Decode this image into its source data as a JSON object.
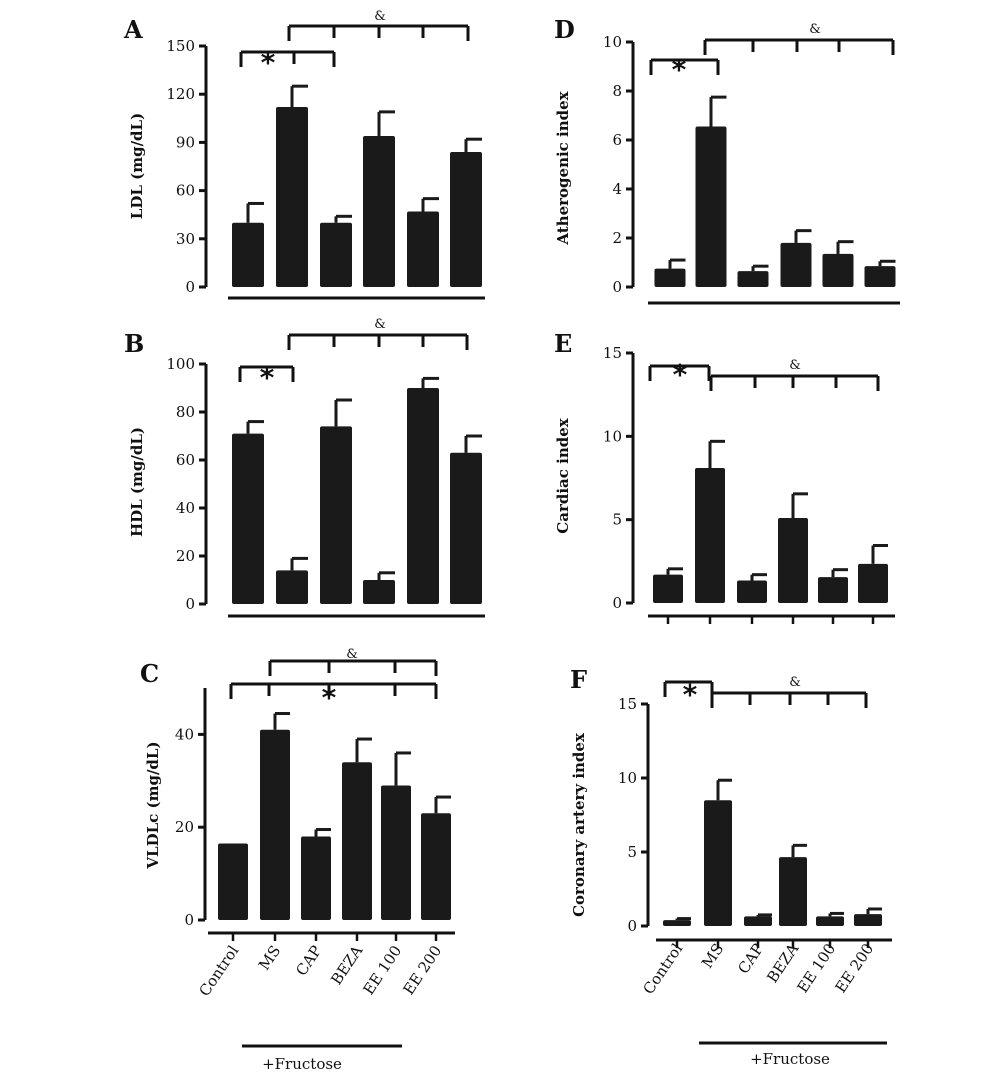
{
  "categories": [
    "Control",
    "MS",
    "CAP",
    "BEZA",
    "EE 100",
    "EE 200"
  ],
  "fructose_label": "+Fructose",
  "chart_data": [
    {
      "id": "A",
      "type": "bar",
      "panel_label": "A",
      "ylabel": "LDL (mg/dL)",
      "ylim": [
        0,
        150
      ],
      "yticks": [
        0,
        30,
        60,
        90,
        120,
        150
      ],
      "categories": [
        "Control",
        "MS",
        "CAP",
        "BEZA",
        "EE 100",
        "EE 200"
      ],
      "values": [
        40,
        112,
        40,
        94,
        47,
        84
      ],
      "errors": [
        12,
        13,
        4,
        15,
        8,
        8
      ],
      "significance": [
        {
          "symbol": "*"
        },
        {
          "symbol": "&"
        }
      ]
    },
    {
      "id": "B",
      "type": "bar",
      "panel_label": "B",
      "ylabel": "HDL (mg/dL)",
      "ylim": [
        0,
        100
      ],
      "yticks": [
        0,
        20,
        40,
        60,
        80,
        100
      ],
      "categories": [
        "Control",
        "MS",
        "CAP",
        "BEZA",
        "EE 100",
        "EE 200"
      ],
      "values": [
        71,
        14,
        74,
        10,
        90,
        63
      ],
      "errors": [
        5,
        5,
        11,
        3,
        4,
        7
      ],
      "significance": [
        {
          "symbol": "*"
        },
        {
          "symbol": "&"
        }
      ]
    },
    {
      "id": "C",
      "type": "bar",
      "panel_label": "C",
      "ylabel": "VLDLc (mg/dL)",
      "ylim": [
        0,
        50
      ],
      "yticks": [
        0,
        20,
        40
      ],
      "categories": [
        "Control",
        "MS",
        "CAP",
        "BEZA",
        "EE 100",
        "EE 200"
      ],
      "values": [
        16.5,
        41,
        18,
        34,
        29,
        23
      ],
      "errors": [
        0,
        3.5,
        1.5,
        5,
        7,
        3.5
      ],
      "significance": [
        {
          "symbol": "&"
        },
        {
          "symbol": "*"
        }
      ]
    },
    {
      "id": "D",
      "type": "bar",
      "panel_label": "D",
      "ylabel": "Atherogenic index",
      "ylim": [
        0,
        10
      ],
      "yticks": [
        0,
        2,
        4,
        6,
        8,
        10
      ],
      "categories": [
        "Control",
        "MS",
        "CAP",
        "BEZA",
        "EE 100",
        "EE 200"
      ],
      "values": [
        0.75,
        6.55,
        0.65,
        1.8,
        1.35,
        0.85
      ],
      "errors": [
        0.35,
        1.2,
        0.2,
        0.5,
        0.5,
        0.2
      ],
      "significance": [
        {
          "symbol": "*"
        },
        {
          "symbol": "&"
        }
      ]
    },
    {
      "id": "E",
      "type": "bar",
      "panel_label": "E",
      "ylabel": "Cardiac index",
      "ylim": [
        0,
        15
      ],
      "yticks": [
        0,
        5,
        10,
        15
      ],
      "categories": [
        "Control",
        "MS",
        "CAP",
        "BEZA",
        "EE 100",
        "EE 200"
      ],
      "values": [
        1.7,
        8.1,
        1.35,
        5.1,
        1.55,
        2.35
      ],
      "errors": [
        0.35,
        1.6,
        0.35,
        1.45,
        0.45,
        1.1
      ],
      "significance": [
        {
          "symbol": "*"
        },
        {
          "symbol": "&"
        }
      ]
    },
    {
      "id": "F",
      "type": "bar",
      "panel_label": "F",
      "ylabel": "Coronary artery index",
      "ylim": [
        0,
        15
      ],
      "yticks": [
        0,
        5,
        10,
        15
      ],
      "categories": [
        "Control",
        "MS",
        "CAP",
        "BEZA",
        "EE 100",
        "EE 200"
      ],
      "values": [
        0.4,
        8.5,
        0.65,
        4.65,
        0.65,
        0.8
      ],
      "errors": [
        0.1,
        1.35,
        0.1,
        0.8,
        0.2,
        0.35
      ],
      "significance": [
        {
          "symbol": "*"
        },
        {
          "symbol": "&"
        }
      ]
    }
  ]
}
